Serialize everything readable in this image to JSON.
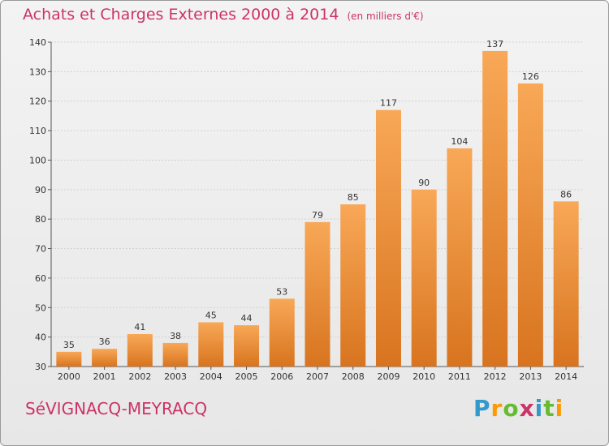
{
  "header": {
    "title": "Achats et Charges Externes 2000 à 2014",
    "unit": "(en milliers d'€)"
  },
  "footer": {
    "commune": "SéVIGNACQ-MEYRACQ",
    "logo": {
      "letters": [
        "P",
        "r",
        "o",
        "x",
        "i",
        "t",
        "i"
      ],
      "colors": [
        "#3399cc",
        "#ff9900",
        "#66bb33",
        "#cc3366",
        "#3399cc",
        "#66bb33",
        "#ff9900"
      ]
    }
  },
  "chart_data": {
    "type": "bar",
    "categories": [
      "2000",
      "2001",
      "2002",
      "2003",
      "2004",
      "2005",
      "2006",
      "2007",
      "2008",
      "2009",
      "2010",
      "2011",
      "2012",
      "2013",
      "2014"
    ],
    "values": [
      35,
      36,
      41,
      38,
      45,
      44,
      53,
      79,
      85,
      117,
      90,
      104,
      137,
      126,
      86
    ],
    "title": "Achats et Charges Externes 2000 à 2014",
    "ylim": [
      30,
      140
    ],
    "yticks": [
      30,
      40,
      50,
      60,
      70,
      80,
      90,
      100,
      110,
      120,
      130,
      140
    ],
    "grid": true,
    "bar_color_top": "#f8a857",
    "bar_color_bottom": "#d8741f",
    "text_color": "#cc3366"
  }
}
